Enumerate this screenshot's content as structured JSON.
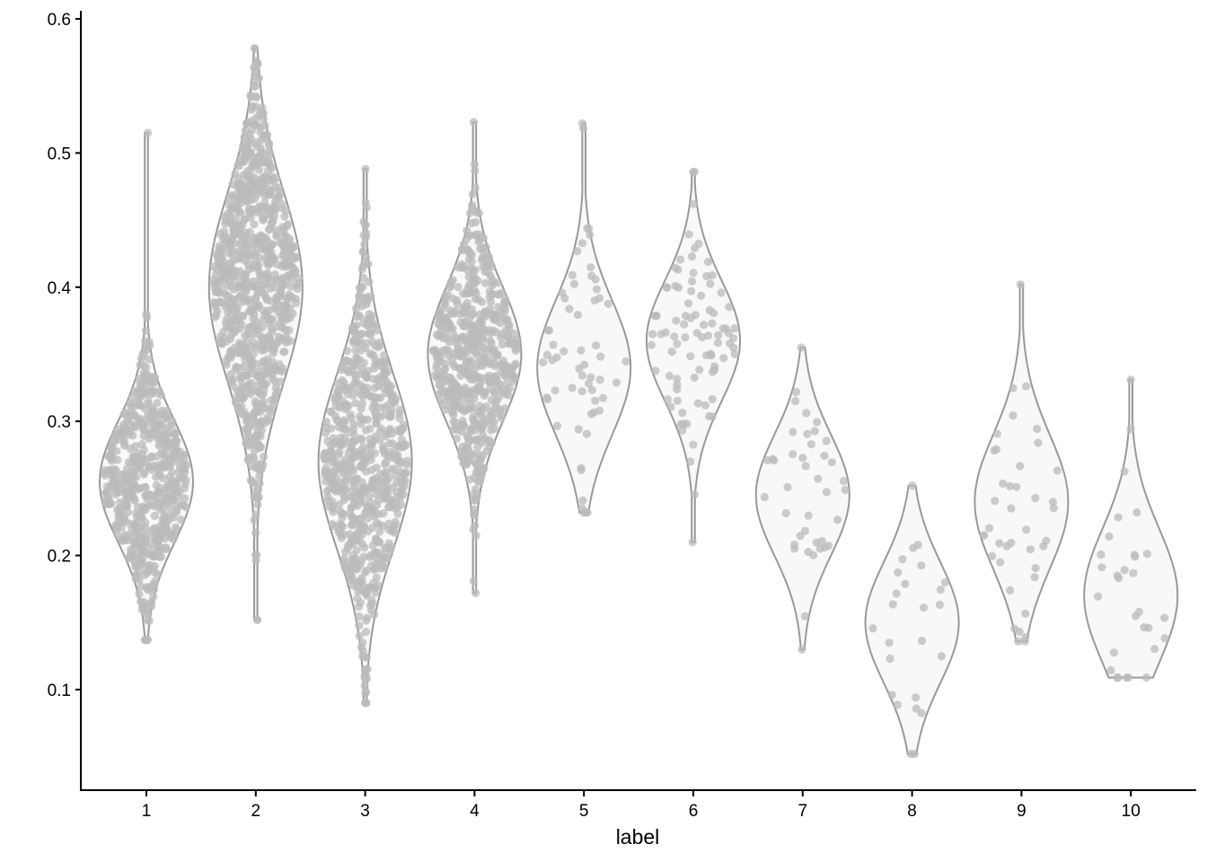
{
  "chart_data": {
    "type": "violin",
    "xlabel": "label",
    "ylabel": "",
    "ylim": [
      0.04,
      0.605
    ],
    "y_ticks": [
      "0.1",
      "0.2",
      "0.3",
      "0.4",
      "0.5",
      "0.6"
    ],
    "categories": [
      "1",
      "2",
      "3",
      "4",
      "5",
      "6",
      "7",
      "8",
      "9",
      "10"
    ],
    "grid": false,
    "legend": "none",
    "colors": {
      "violin_stroke": "#999999",
      "violin_fill": "#f8f8f8",
      "point": "#bbbbbb",
      "axis": "#000000"
    },
    "series": [
      {
        "category": "1",
        "n": 600,
        "min": 0.137,
        "max": 0.515,
        "mode": 0.255,
        "spread": 0.045
      },
      {
        "category": "2",
        "n": 900,
        "min": 0.152,
        "max": 0.578,
        "mode": 0.4,
        "spread": 0.07
      },
      {
        "category": "3",
        "n": 700,
        "min": 0.09,
        "max": 0.488,
        "mode": 0.27,
        "spread": 0.065
      },
      {
        "category": "4",
        "n": 600,
        "min": 0.172,
        "max": 0.523,
        "mode": 0.35,
        "spread": 0.05
      },
      {
        "category": "5",
        "n": 60,
        "min": 0.232,
        "max": 0.522,
        "mode": 0.34,
        "spread": 0.05
      },
      {
        "category": "6",
        "n": 90,
        "min": 0.21,
        "max": 0.486,
        "mode": 0.36,
        "spread": 0.045
      },
      {
        "category": "7",
        "n": 40,
        "min": 0.13,
        "max": 0.355,
        "mode": 0.245,
        "spread": 0.045
      },
      {
        "category": "8",
        "n": 25,
        "min": 0.052,
        "max": 0.252,
        "mode": 0.15,
        "spread": 0.045
      },
      {
        "category": "9",
        "n": 40,
        "min": 0.136,
        "max": 0.402,
        "mode": 0.24,
        "spread": 0.05
      },
      {
        "category": "10",
        "n": 30,
        "min": 0.109,
        "max": 0.331,
        "mode": 0.17,
        "spread": 0.05
      }
    ]
  }
}
